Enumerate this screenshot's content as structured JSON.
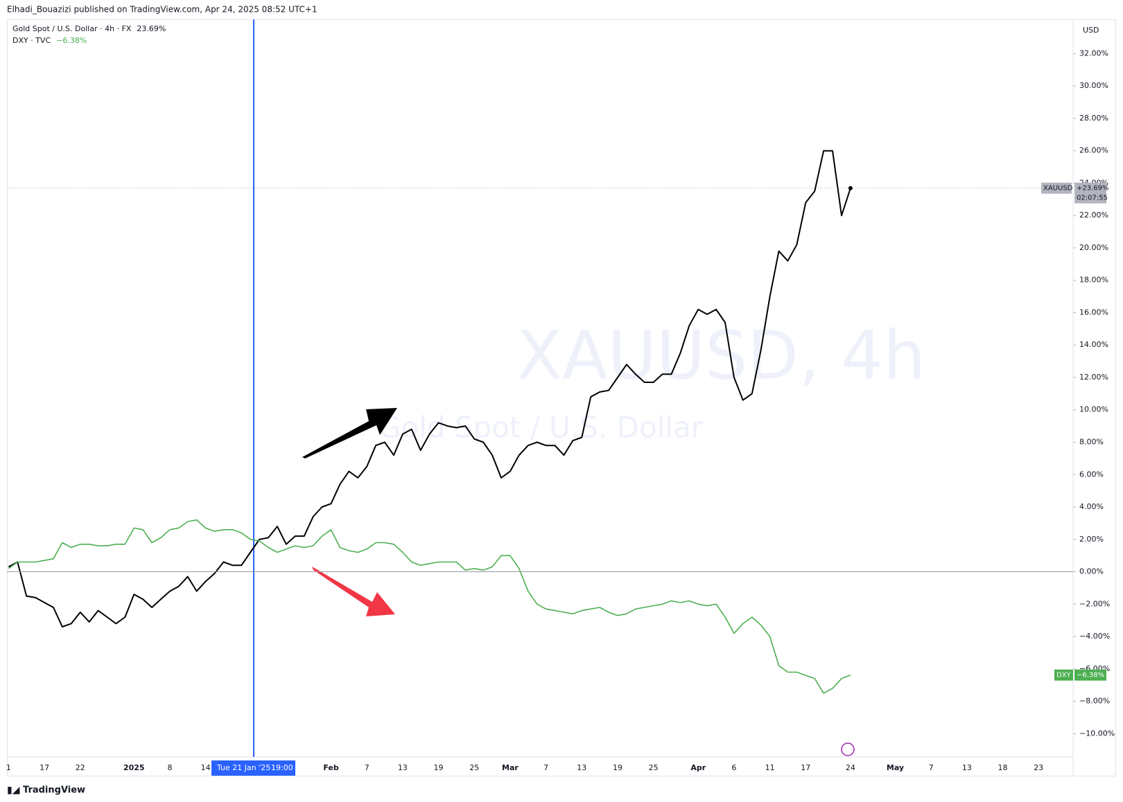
{
  "header": "Elhadi_Bouazizi published on TradingView.com, Apr 24, 2025 08:52 UTC+1",
  "footer": "TradingView",
  "chart_data": {
    "type": "line",
    "watermark": "XAUUSD, 4h",
    "watermark_subtitle": "Gold Spot / U.S. Dollar",
    "currency": "USD",
    "crosshair_label": "Tue 21 Jan '25",
    "crosshair_time": "19:00",
    "countdown": "02:07:55",
    "categories": [
      "1",
      null,
      null,
      null,
      "17",
      null,
      null,
      null,
      "22",
      null,
      null,
      null,
      null,
      null,
      "2025",
      null,
      null,
      null,
      "8",
      null,
      null,
      null,
      "14",
      null,
      null,
      null,
      null,
      null,
      null,
      null,
      null,
      null,
      null,
      null,
      null,
      null,
      "Feb",
      null,
      null,
      null,
      "7",
      null,
      null,
      null,
      "13",
      null,
      null,
      null,
      "19",
      null,
      null,
      null,
      "25",
      null,
      null,
      null,
      "Mar",
      null,
      null,
      null,
      "7",
      null,
      null,
      null,
      "13",
      null,
      null,
      null,
      "19",
      null,
      null,
      null,
      "25",
      null,
      null,
      null,
      null,
      "Apr",
      null,
      null,
      null,
      "6",
      null,
      null,
      null,
      "11",
      null,
      null,
      null,
      "17",
      null,
      null,
      null,
      null,
      "24",
      null,
      null,
      null,
      null,
      "May",
      null,
      null,
      null,
      "7",
      null,
      null,
      null,
      "13",
      null,
      null,
      null,
      "18",
      null,
      null,
      null,
      "23",
      null,
      null,
      null
    ],
    "series": [
      {
        "name": "Gold Spot / U.S. Dollar · 4h · FX",
        "tag": "XAUUSD",
        "legend_value": "23.69%",
        "last_label": "+23.69%",
        "color": "#000000",
        "values": [
          0.3,
          0.6,
          -1.5,
          -1.6,
          -1.9,
          -2.2,
          -3.4,
          -3.2,
          -2.5,
          -3.1,
          -2.4,
          -2.8,
          -3.2,
          -2.8,
          -1.4,
          -1.7,
          -2.2,
          -1.7,
          -1.2,
          -0.9,
          -0.3,
          -1.2,
          -0.6,
          -0.1,
          0.6,
          0.4,
          0.4,
          1.2,
          2.0,
          2.1,
          2.8,
          1.7,
          2.2,
          2.2,
          3.4,
          4.0,
          4.2,
          5.4,
          6.2,
          5.8,
          6.5,
          7.8,
          8.0,
          7.2,
          8.5,
          8.8,
          7.5,
          8.5,
          9.2,
          9.0,
          8.9,
          9.0,
          8.2,
          8.0,
          7.2,
          5.8,
          6.2,
          7.2,
          7.8,
          8.0,
          7.8,
          7.8,
          7.2,
          8.1,
          8.3,
          10.8,
          11.1,
          11.2,
          12.0,
          12.8,
          12.2,
          11.7,
          11.7,
          12.2,
          12.2,
          13.5,
          15.2,
          16.2,
          15.9,
          16.2,
          15.4,
          12.0,
          10.6,
          11.0,
          13.7,
          17.0,
          19.8,
          19.2,
          20.2,
          22.8,
          23.5,
          26.0,
          26.0,
          22.0,
          23.69,
          null,
          null,
          null,
          null,
          null,
          null,
          null,
          null,
          null,
          null,
          null,
          null,
          null,
          null,
          null,
          null,
          null,
          null,
          null,
          null,
          null,
          null,
          null,
          null
        ]
      },
      {
        "name": "DXY · TVC",
        "tag": "DXY",
        "legend_value": "−6.38%",
        "last_label": "−6.38%",
        "color": "#4caf50",
        "values": [
          0.2,
          0.6,
          0.6,
          0.6,
          0.7,
          0.8,
          1.8,
          1.5,
          1.7,
          1.7,
          1.6,
          1.6,
          1.7,
          1.7,
          2.7,
          2.6,
          1.8,
          2.1,
          2.6,
          2.7,
          3.1,
          3.2,
          2.7,
          2.5,
          2.6,
          2.6,
          2.4,
          2.0,
          1.9,
          1.5,
          1.2,
          1.4,
          1.6,
          1.5,
          1.6,
          2.2,
          2.6,
          1.5,
          1.3,
          1.2,
          1.4,
          1.8,
          1.8,
          1.7,
          1.2,
          0.6,
          0.4,
          0.5,
          0.6,
          0.6,
          0.6,
          0.1,
          0.2,
          0.1,
          0.3,
          1.0,
          1.0,
          0.2,
          -1.2,
          -2.0,
          -2.3,
          -2.4,
          -2.5,
          -2.6,
          -2.4,
          -2.3,
          -2.2,
          -2.5,
          -2.7,
          -2.6,
          -2.3,
          -2.2,
          -2.1,
          -2.0,
          -1.8,
          -1.9,
          -1.8,
          -2.0,
          -2.1,
          -2.0,
          -2.8,
          -3.8,
          -3.2,
          -2.8,
          -3.3,
          -4.0,
          -5.8,
          -6.2,
          -6.2,
          -6.4,
          -6.6,
          -7.5,
          -7.2,
          -6.6,
          -6.38,
          null,
          null,
          null,
          null,
          null,
          null,
          null,
          null,
          null,
          null,
          null,
          null,
          null,
          null,
          null,
          null,
          null,
          null,
          null,
          null,
          null,
          null,
          null,
          null
        ]
      }
    ],
    "ylim": [
      -11.44,
      34.07
    ],
    "yticks": [
      {
        "value": 32,
        "label": "32.00%"
      },
      {
        "value": 30,
        "label": "30.00%"
      },
      {
        "value": 28,
        "label": "28.00%"
      },
      {
        "value": 26,
        "label": "26.00%"
      },
      {
        "value": 24,
        "label": "24.00%"
      },
      {
        "value": 22,
        "label": "22.00%"
      },
      {
        "value": 20,
        "label": "20.00%"
      },
      {
        "value": 18,
        "label": "18.00%"
      },
      {
        "value": 16,
        "label": "16.00%"
      },
      {
        "value": 14,
        "label": "14.00%"
      },
      {
        "value": 12,
        "label": "12.00%"
      },
      {
        "value": 10,
        "label": "10.00%"
      },
      {
        "value": 8,
        "label": "8.00%"
      },
      {
        "value": 6,
        "label": "6.00%"
      },
      {
        "value": 4,
        "label": "4.00%"
      },
      {
        "value": 2,
        "label": "2.00%"
      },
      {
        "value": 0,
        "label": "0.00%"
      },
      {
        "value": -2,
        "label": "−2.00%"
      },
      {
        "value": -4,
        "label": "−4.00%"
      },
      {
        "value": -6,
        "label": "−6.00%"
      },
      {
        "value": -8,
        "label": "−8.00%"
      },
      {
        "value": -10,
        "label": "−10.00%"
      }
    ],
    "grid": false
  }
}
